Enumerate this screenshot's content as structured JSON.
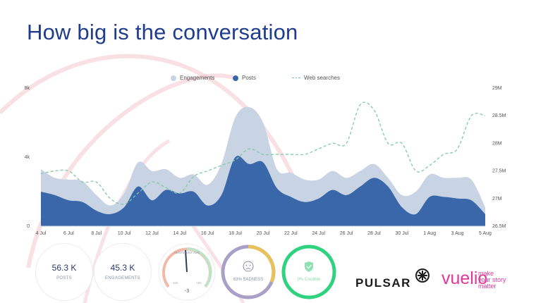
{
  "title": "How big is the conversation",
  "legend": {
    "engagements": "Engagements",
    "posts": "Posts",
    "web_searches": "Web searches"
  },
  "colors": {
    "title": "#1f3c8f",
    "engagements": "#c8d4e3",
    "posts": "#3a67a9",
    "web_searches": "#7fc9a8",
    "deco": "#f3c6cf",
    "vuelio": "#e0399a"
  },
  "chart_data": {
    "type": "area",
    "categories": [
      "4 Jul",
      "5 Jul",
      "6 Jul",
      "7 Jul",
      "8 Jul",
      "9 Jul",
      "10 Jul",
      "11 Jul",
      "12 Jul",
      "13 Jul",
      "14 Jul",
      "15 Jul",
      "16 Jul",
      "17 Jul",
      "18 Jul",
      "19 Jul",
      "20 Jul",
      "21 Jul",
      "22 Jul",
      "23 Jul",
      "24 Jul",
      "25 Jul",
      "26 Jul",
      "27 Jul",
      "28 Jul",
      "29 Jul",
      "30 Jul",
      "31 Jul",
      "1 Aug",
      "2 Aug",
      "3 Aug",
      "4 Aug",
      "5 Aug"
    ],
    "x_tick_labels": [
      "4 Jul",
      "6 Jul",
      "8 Jul",
      "10 Jul",
      "12 Jul",
      "14 Jul",
      "16 Jul",
      "18 Jul",
      "20 Jul",
      "22 Jul",
      "24 Jul",
      "26 Jul",
      "28 Jul",
      "30 Jul",
      "1 Aug",
      "3 Aug",
      "5 Aug"
    ],
    "series": [
      {
        "name": "Engagements",
        "axis": "left",
        "values": [
          3300,
          2800,
          2700,
          2600,
          1800,
          1200,
          1900,
          3700,
          3200,
          3300,
          2800,
          3000,
          2400,
          3600,
          6300,
          6900,
          6000,
          3300,
          3100,
          2700,
          2700,
          3200,
          2800,
          3200,
          3600,
          2800,
          1800,
          2000,
          3000,
          2800,
          2800,
          2700,
          1100
        ]
      },
      {
        "name": "Posts",
        "axis": "left",
        "values": [
          2000,
          1800,
          1500,
          1400,
          900,
          700,
          1100,
          2300,
          1500,
          2100,
          1900,
          2000,
          1200,
          1800,
          4000,
          3600,
          3700,
          2200,
          1700,
          1400,
          1600,
          2100,
          1800,
          2300,
          2800,
          2300,
          1100,
          700,
          1700,
          1700,
          1600,
          1500,
          700
        ]
      },
      {
        "name": "Web searches",
        "axis": "right",
        "values": [
          27.45,
          27.5,
          27.5,
          27.3,
          27.3,
          27.0,
          26.9,
          27.1,
          27.3,
          27.2,
          27.1,
          27.4,
          27.5,
          27.6,
          27.7,
          27.9,
          27.8,
          27.8,
          27.8,
          27.8,
          27.9,
          28.0,
          28.0,
          28.7,
          28.6,
          28.0,
          28.0,
          27.5,
          27.6,
          27.8,
          27.9,
          28.5,
          28.5
        ]
      }
    ],
    "left_axis": {
      "ticks": [
        "0",
        "4k",
        "8k"
      ],
      "ylim": [
        0,
        8000
      ]
    },
    "right_axis": {
      "ticks": [
        "26.5M",
        "27M",
        "27.5M",
        "28M",
        "28.5M",
        "29M"
      ],
      "ylim": [
        26.5,
        29
      ]
    },
    "legend_position": "top-center",
    "grid": false
  },
  "kpis": [
    {
      "value": "56.3 K",
      "label": "POSTS"
    },
    {
      "value": "45.3 K",
      "label": "ENGAGEMENTS"
    }
  ],
  "gauges": {
    "sentiment": {
      "label": "SENTIMENT AVG",
      "value": "-3",
      "min_label": "-100",
      "max_label": "100",
      "color": "#e89b9b"
    },
    "emotion": {
      "label": "63% SADNESS",
      "color": "#a9a0c8",
      "accent": "#e8c15a"
    },
    "credibility": {
      "label": "0% Credible",
      "color": "#2fd27e"
    }
  },
  "logos": {
    "pulsar": "PULSAR",
    "vuelio": "vuelio",
    "vuelio_tagline": [
      "make",
      "your story",
      "matter"
    ]
  }
}
